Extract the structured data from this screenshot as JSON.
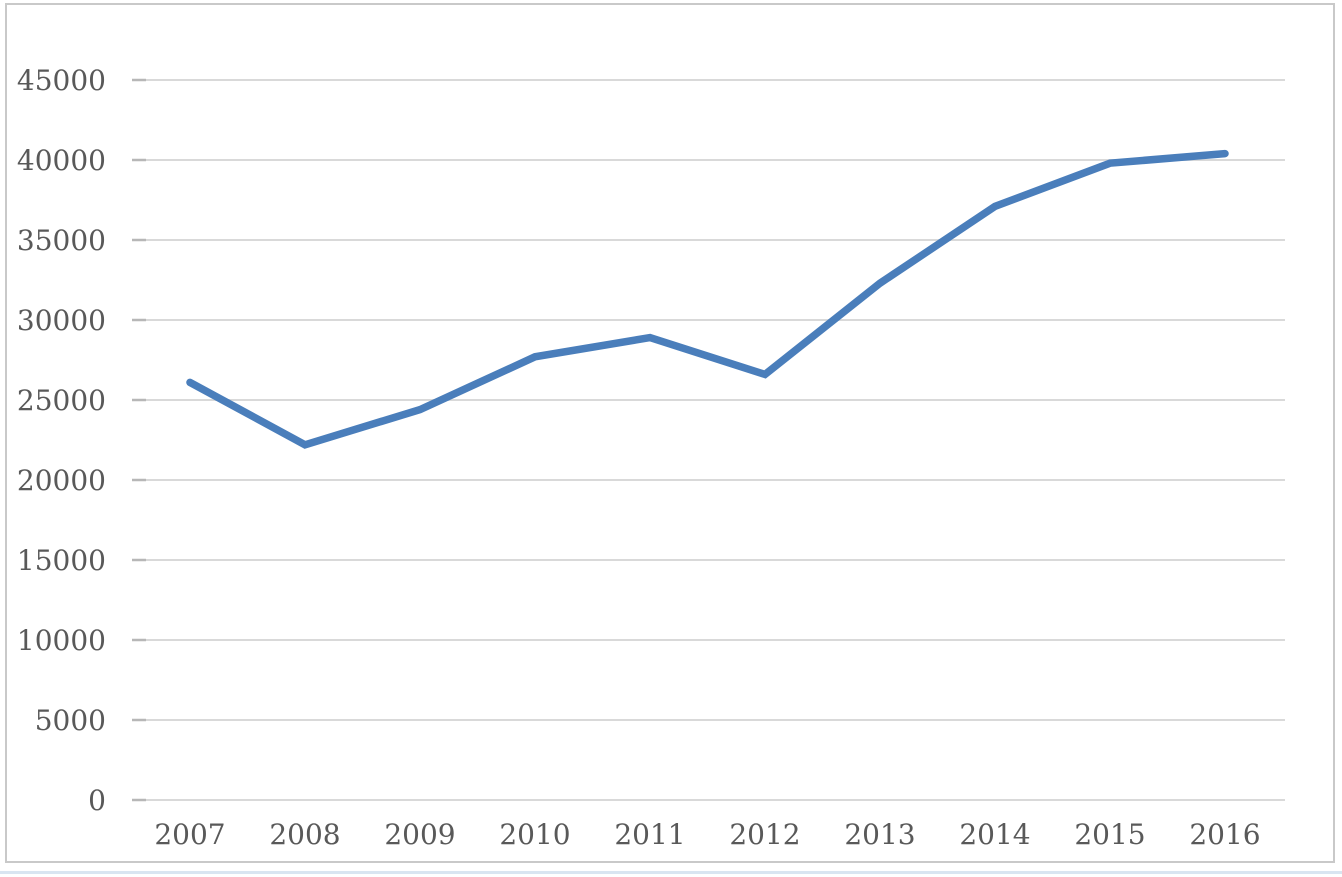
{
  "window": {
    "background": "#ffffff",
    "frame_border_color": "#c9c9c9",
    "bottom_accent_color": "#d9e5f1"
  },
  "chart_data": {
    "type": "line",
    "title": "",
    "xlabel": "",
    "ylabel": "",
    "categories": [
      "2007",
      "2008",
      "2009",
      "2010",
      "2011",
      "2012",
      "2013",
      "2014",
      "2015",
      "2016"
    ],
    "series": [
      {
        "values": [
          26100,
          22200,
          24400,
          27700,
          28900,
          26600,
          32300,
          37100,
          39800,
          40400
        ],
        "color": "#4a7ebb",
        "stroke_width": 7.5
      }
    ],
    "ylim": [
      0,
      45000
    ],
    "y_tick_step": 5000,
    "y_tick_labels": [
      "0",
      "5000",
      "10000",
      "15000",
      "20000",
      "25000",
      "30000",
      "35000",
      "40000",
      "45000"
    ],
    "grid": true,
    "gridline_color": "#d9d9d9",
    "axis_tick_color": "#b7b7b7",
    "label_color": "#595959",
    "tick_font_size": 28,
    "legend_position": "none",
    "markers": "none"
  }
}
